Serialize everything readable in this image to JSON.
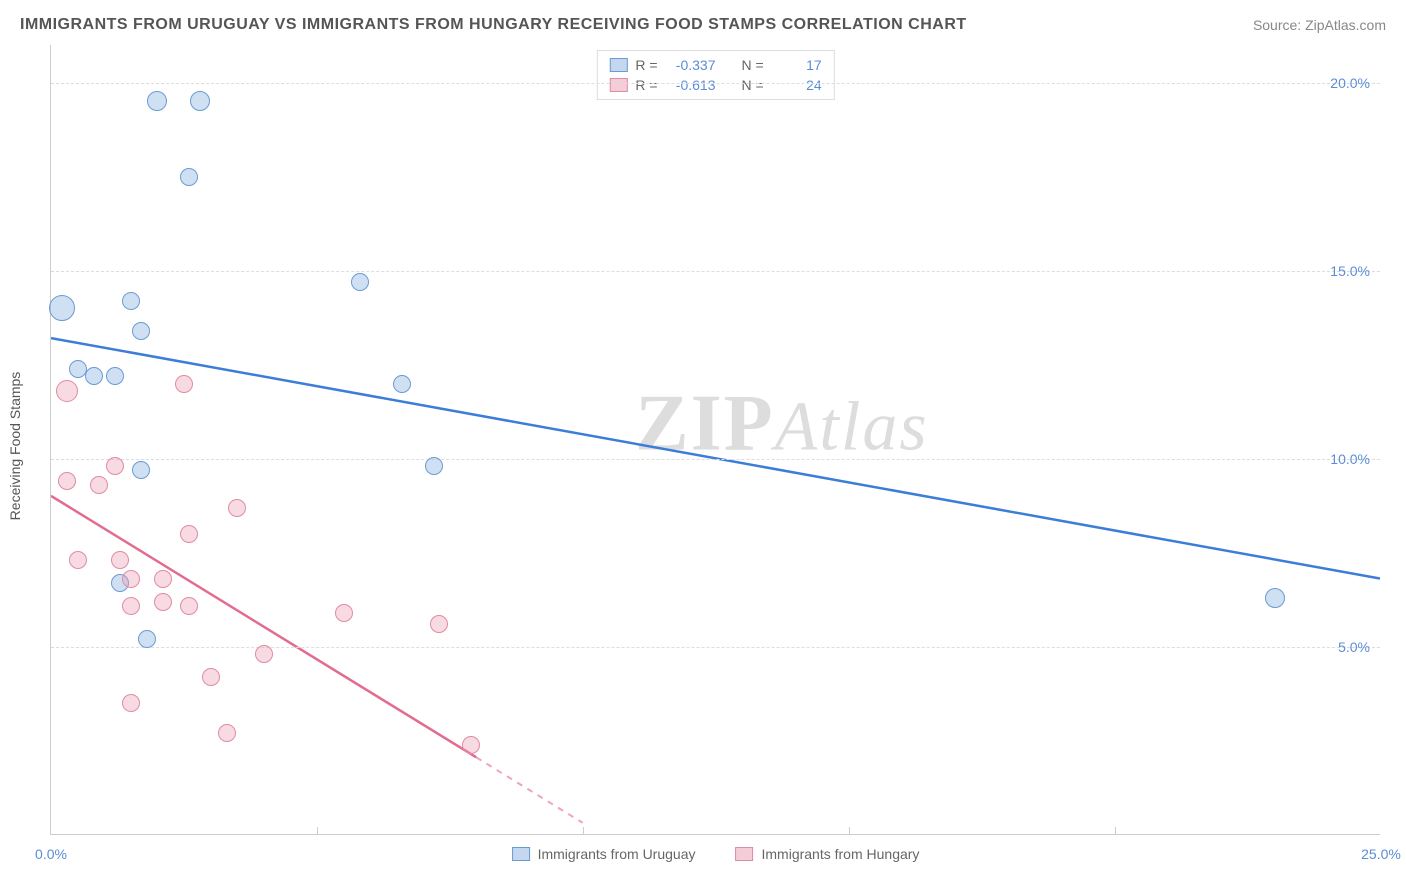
{
  "header": {
    "title": "IMMIGRANTS FROM URUGUAY VS IMMIGRANTS FROM HUNGARY RECEIVING FOOD STAMPS CORRELATION CHART",
    "source_label": "Source:",
    "source_value": "ZipAtlas.com"
  },
  "chart": {
    "type": "scatter",
    "ylabel": "Receiving Food Stamps",
    "xlim": [
      0,
      25
    ],
    "ylim": [
      0,
      21
    ],
    "x_ticks": [
      0,
      5,
      10,
      15,
      20,
      25
    ],
    "x_tick_labels": [
      "0.0%",
      "",
      "",
      "",
      "",
      "25.0%"
    ],
    "y_ticks": [
      5,
      10,
      15,
      20
    ],
    "y_tick_labels": [
      "5.0%",
      "10.0%",
      "15.0%",
      "20.0%"
    ],
    "grid_color": "#dddddd",
    "background_color": "#ffffff",
    "axis_color": "#cccccc",
    "tick_label_color": "#5b8dd6",
    "watermark": "ZIPAtlas",
    "series": [
      {
        "name": "Immigrants from Uruguay",
        "color_fill": "rgba(120,165,220,0.35)",
        "color_stroke": "#6a9bd4",
        "line_color": "#3b7dd8",
        "swatch_fill": "#c4d7ef",
        "swatch_border": "#6a9bd4",
        "marker_radius": 9,
        "r_value": "-0.337",
        "n_value": "17",
        "trend": {
          "x1": 0,
          "y1": 13.2,
          "x2": 25,
          "y2": 6.8,
          "solid_until_x": 25
        },
        "points": [
          {
            "x": 2.0,
            "y": 19.5,
            "r": 10
          },
          {
            "x": 2.8,
            "y": 19.5,
            "r": 10
          },
          {
            "x": 2.6,
            "y": 17.5,
            "r": 9
          },
          {
            "x": 5.8,
            "y": 14.7,
            "r": 9
          },
          {
            "x": 0.2,
            "y": 14.0,
            "r": 13
          },
          {
            "x": 1.5,
            "y": 14.2,
            "r": 9
          },
          {
            "x": 1.7,
            "y": 13.4,
            "r": 9
          },
          {
            "x": 0.5,
            "y": 12.4,
            "r": 9
          },
          {
            "x": 0.8,
            "y": 12.2,
            "r": 9
          },
          {
            "x": 1.2,
            "y": 12.2,
            "r": 9
          },
          {
            "x": 6.6,
            "y": 12.0,
            "r": 9
          },
          {
            "x": 1.7,
            "y": 9.7,
            "r": 9
          },
          {
            "x": 7.2,
            "y": 9.8,
            "r": 9
          },
          {
            "x": 1.3,
            "y": 6.7,
            "r": 9
          },
          {
            "x": 1.8,
            "y": 5.2,
            "r": 9
          },
          {
            "x": 23.0,
            "y": 6.3,
            "r": 10
          }
        ]
      },
      {
        "name": "Immigrants from Hungary",
        "color_fill": "rgba(235,150,175,0.35)",
        "color_stroke": "#e08ba4",
        "line_color": "#e36b8e",
        "swatch_fill": "#f4cdd8",
        "swatch_border": "#e08ba4",
        "marker_radius": 9,
        "r_value": "-0.613",
        "n_value": "24",
        "trend": {
          "x1": 0,
          "y1": 9.0,
          "x2": 10.0,
          "y2": 0.3,
          "solid_until_x": 8.0
        },
        "points": [
          {
            "x": 0.3,
            "y": 11.8,
            "r": 11
          },
          {
            "x": 2.5,
            "y": 12.0,
            "r": 9
          },
          {
            "x": 1.2,
            "y": 9.8,
            "r": 9
          },
          {
            "x": 0.3,
            "y": 9.4,
            "r": 9
          },
          {
            "x": 0.9,
            "y": 9.3,
            "r": 9
          },
          {
            "x": 3.5,
            "y": 8.7,
            "r": 9
          },
          {
            "x": 2.6,
            "y": 8.0,
            "r": 9
          },
          {
            "x": 0.5,
            "y": 7.3,
            "r": 9
          },
          {
            "x": 1.3,
            "y": 7.3,
            "r": 9
          },
          {
            "x": 1.5,
            "y": 6.8,
            "r": 9
          },
          {
            "x": 2.1,
            "y": 6.8,
            "r": 9
          },
          {
            "x": 2.1,
            "y": 6.2,
            "r": 9
          },
          {
            "x": 1.5,
            "y": 6.1,
            "r": 9
          },
          {
            "x": 2.6,
            "y": 6.1,
            "r": 9
          },
          {
            "x": 5.5,
            "y": 5.9,
            "r": 9
          },
          {
            "x": 7.3,
            "y": 5.6,
            "r": 9
          },
          {
            "x": 4.0,
            "y": 4.8,
            "r": 9
          },
          {
            "x": 3.0,
            "y": 4.2,
            "r": 9
          },
          {
            "x": 1.5,
            "y": 3.5,
            "r": 9
          },
          {
            "x": 3.3,
            "y": 2.7,
            "r": 9
          },
          {
            "x": 7.9,
            "y": 2.4,
            "r": 9
          }
        ]
      }
    ],
    "legend_top": {
      "r_label": "R =",
      "n_label": "N ="
    }
  }
}
